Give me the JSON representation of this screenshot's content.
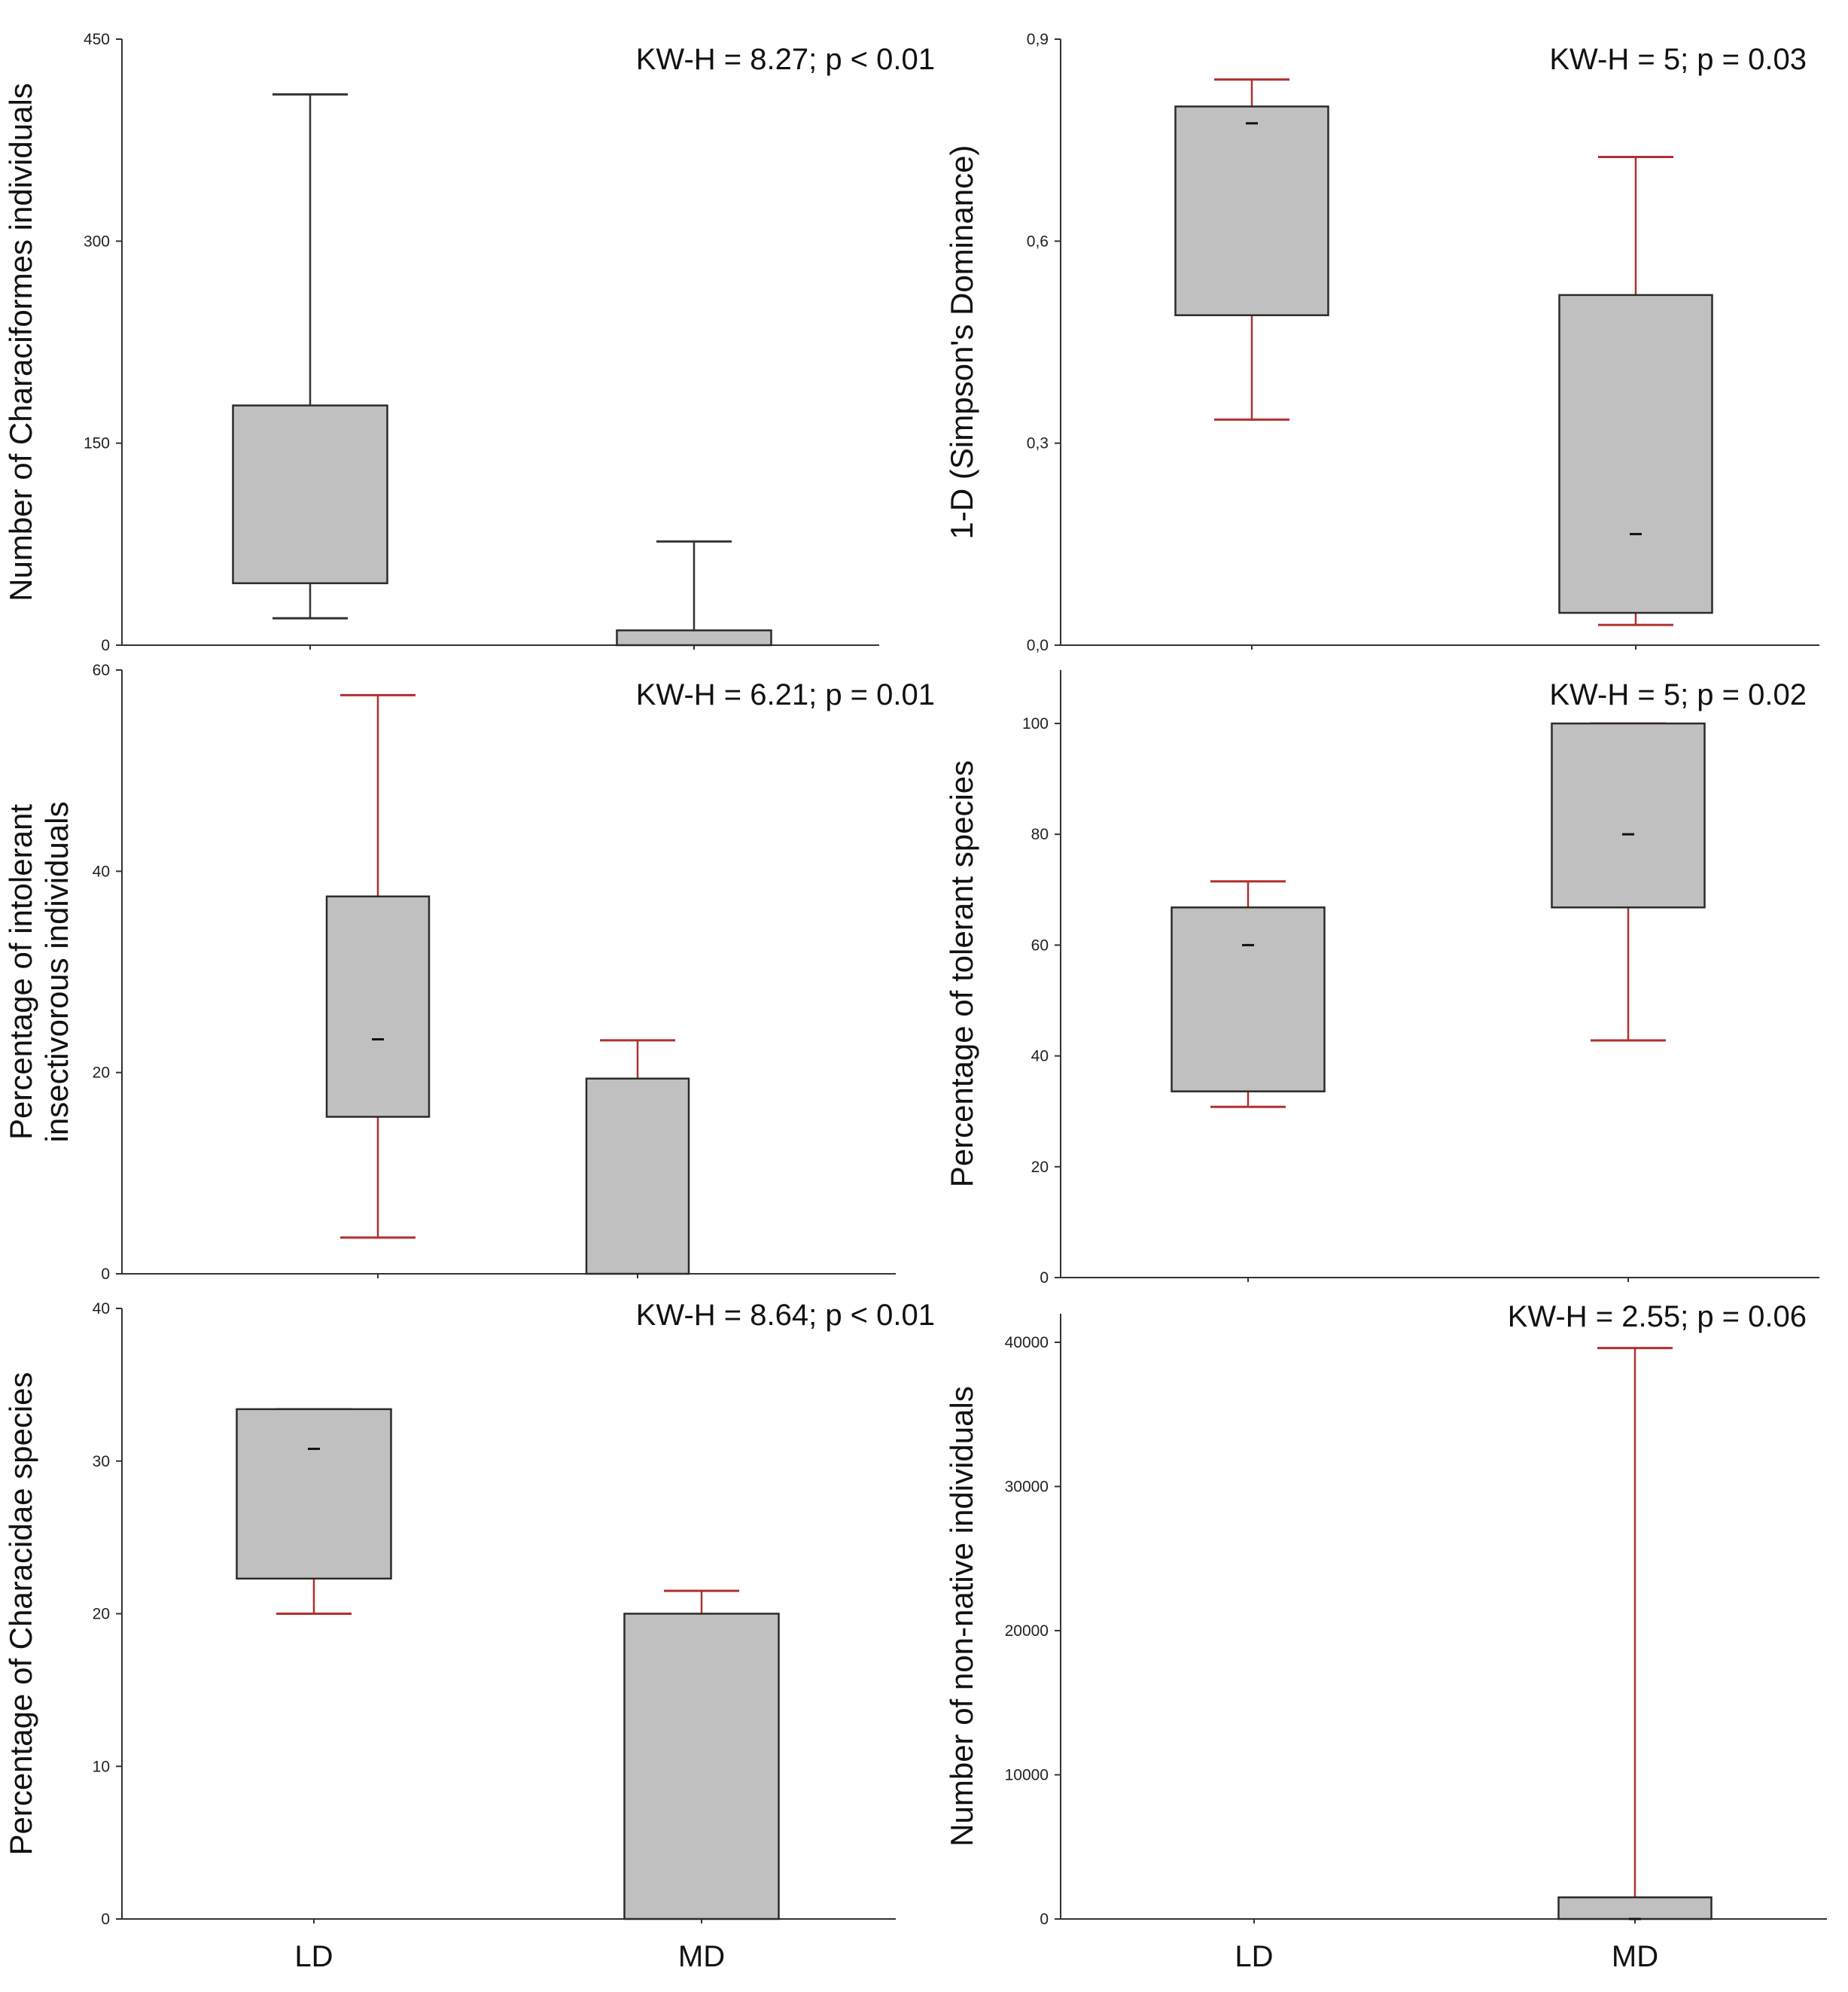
{
  "colors": {
    "box_fill": "#c0c0c0",
    "box_stroke": "#2b2b2b",
    "whisker_black": "#333333",
    "whisker_red": "#b03030",
    "axis": "#333333"
  },
  "chart_data": [
    {
      "type": "box",
      "ylabel": "Number of Characiformes individuals",
      "stat": "KW-H = 8.27; p < 0.01",
      "ylim": [
        0,
        450
      ],
      "yticks": [
        0,
        150,
        300,
        450
      ],
      "ytick_labels": [
        "0",
        "150",
        "300",
        "450"
      ],
      "categories": [
        "LD",
        "MD"
      ],
      "whisker_color": "black",
      "boxes": [
        {
          "category": "LD",
          "whisker_low": 20,
          "q1": 46,
          "median": null,
          "q3": 178,
          "whisker_high": 409
        },
        {
          "category": "MD",
          "whisker_low": 0,
          "q1": 0,
          "median": null,
          "q3": 11,
          "whisker_high": 77
        }
      ]
    },
    {
      "type": "box",
      "ylabel": "1-D (Simpson's Dominance)",
      "stat": "KW-H = 5; p = 0.03",
      "ylim": [
        0,
        0.9
      ],
      "yticks": [
        0,
        0.3,
        0.6,
        0.9
      ],
      "ytick_labels": [
        "0,0",
        "0,3",
        "0,6",
        "0,9"
      ],
      "categories": [
        "LD",
        "MD"
      ],
      "whisker_color": "red",
      "boxes": [
        {
          "category": "LD",
          "whisker_low": 0.335,
          "q1": 0.49,
          "median": 0.775,
          "q3": 0.8,
          "whisker_high": 0.84
        },
        {
          "category": "MD",
          "whisker_low": 0.03,
          "q1": 0.048,
          "median": 0.165,
          "q3": 0.52,
          "whisker_high": 0.725
        }
      ]
    },
    {
      "type": "box",
      "ylabel": [
        "Percentage of intolerant",
        "insectivorous individuals"
      ],
      "stat": "KW-H = 6.21; p = 0.01",
      "ylim": [
        0,
        60
      ],
      "yticks": [
        0,
        20,
        40,
        60
      ],
      "ytick_labels": [
        "0",
        "20",
        "40",
        "60"
      ],
      "categories": [
        "LD",
        "MD"
      ],
      "whisker_color": "red",
      "boxes": [
        {
          "category": "LD",
          "whisker_low": 3.6,
          "q1": 15.6,
          "median": 23.3,
          "q3": 37.5,
          "whisker_high": 57.5
        },
        {
          "category": "MD",
          "whisker_low": 0,
          "q1": 0,
          "median": null,
          "q3": 19.4,
          "whisker_high": 23.2
        }
      ]
    },
    {
      "type": "box",
      "ylabel": "Percentage of tolerant species",
      "stat": "KW-H = 5; p = 0.02",
      "ylim": [
        0,
        110
      ],
      "yticks": [
        0,
        20,
        40,
        60,
        80,
        100
      ],
      "ytick_labels": [
        "0",
        "20",
        "40",
        "60",
        "80",
        "100"
      ],
      "categories": [
        "LD",
        "MD"
      ],
      "whisker_color": "red",
      "boxes": [
        {
          "category": "LD",
          "whisker_low": 30.8,
          "q1": 33.6,
          "median": 60,
          "q3": 66.8,
          "whisker_high": 71.5
        },
        {
          "category": "MD",
          "whisker_low": 42.8,
          "q1": 66.8,
          "median": 80,
          "q3": 100,
          "whisker_high": 100
        }
      ]
    },
    {
      "type": "box",
      "ylabel": "Percentage of Characidae species",
      "stat": "KW-H = 8.64; p < 0.01",
      "ylim": [
        0,
        40
      ],
      "yticks": [
        0,
        10,
        20,
        30,
        40
      ],
      "ytick_labels": [
        "0",
        "10",
        "20",
        "30",
        "40"
      ],
      "categories": [
        "LD",
        "MD"
      ],
      "whisker_color": "red",
      "boxes": [
        {
          "category": "LD",
          "whisker_low": 20,
          "q1": 22.3,
          "median": 30.8,
          "q3": 33.4,
          "whisker_high": 33.4
        },
        {
          "category": "MD",
          "whisker_low": 0,
          "q1": 0,
          "median": null,
          "q3": 20,
          "whisker_high": 21.5
        }
      ]
    },
    {
      "type": "box",
      "ylabel": "Number of non-native individuals",
      "stat": "KW-H = 2.55; p = 0.06",
      "ylim": [
        0,
        42000
      ],
      "yticks": [
        0,
        10000,
        20000,
        30000,
        40000
      ],
      "ytick_labels": [
        "0",
        "10000",
        "20000",
        "30000",
        "40000"
      ],
      "categories": [
        "LD",
        "MD"
      ],
      "whisker_color": "red",
      "boxes": [
        {
          "category": "LD",
          "whisker_low": 0,
          "q1": 0,
          "median": null,
          "q3": 0,
          "whisker_high": 0
        },
        {
          "category": "MD",
          "whisker_low": 0,
          "q1": 0,
          "median": 0,
          "q3": 1500,
          "whisker_high": 39600
        }
      ]
    }
  ],
  "x_axis_labels": [
    "LD",
    "MD"
  ]
}
